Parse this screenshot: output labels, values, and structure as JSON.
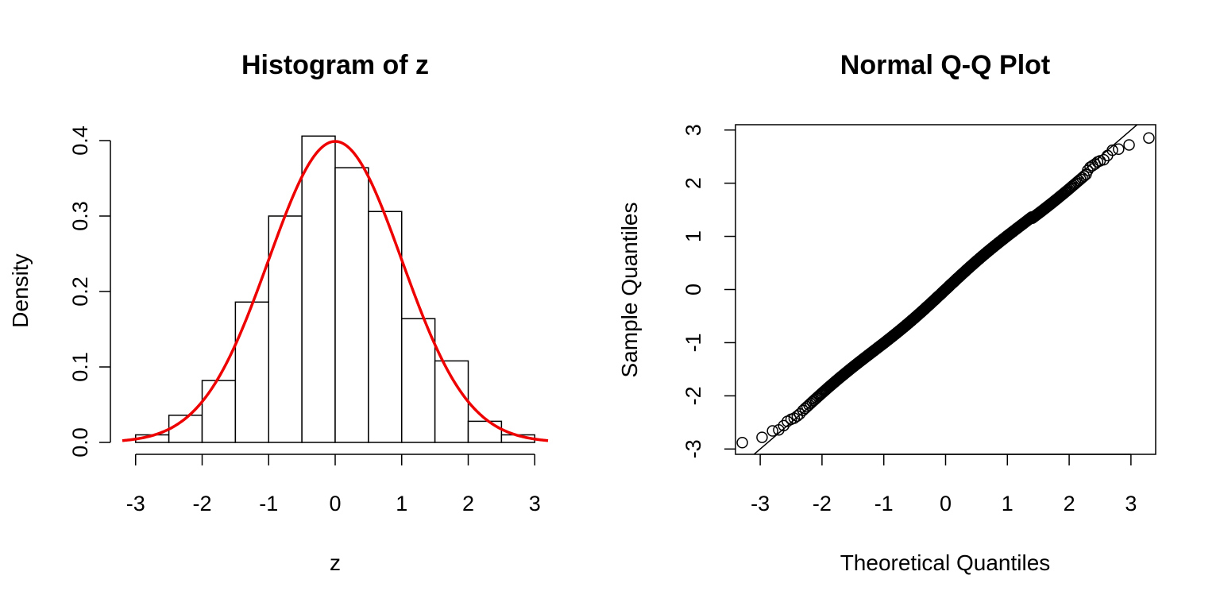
{
  "chart_data": [
    {
      "type": "bar",
      "title": "Histogram of z",
      "xlabel": "z",
      "ylabel": "Density",
      "xlim": [
        -3.2,
        3.2
      ],
      "ylim": [
        0,
        0.42
      ],
      "x_ticks": [
        -3,
        -2,
        -1,
        0,
        1,
        2,
        3
      ],
      "y_ticks": [
        0.0,
        0.1,
        0.2,
        0.3,
        0.4
      ],
      "y_tick_labels": [
        "0.0",
        "0.1",
        "0.2",
        "0.3",
        "0.4"
      ],
      "bin_edges": [
        -3.0,
        -2.5,
        -2.0,
        -1.5,
        -1.0,
        -0.5,
        0.0,
        0.5,
        1.0,
        1.5,
        2.0,
        2.5,
        3.0
      ],
      "values": [
        0.01,
        0.036,
        0.082,
        0.186,
        0.3,
        0.406,
        0.364,
        0.306,
        0.164,
        0.108,
        0.028,
        0.01
      ],
      "overlay": {
        "type": "line",
        "function": "standard normal density",
        "color": "#ee0000"
      },
      "bar_fill": "#ffffff",
      "bar_stroke": "#000000",
      "frame": "axes only",
      "grid": false
    },
    {
      "type": "scatter",
      "title": "Normal Q-Q Plot",
      "xlabel": "Theoretical Quantiles",
      "ylabel": "Sample Quantiles",
      "xlim": [
        -3.4,
        3.4
      ],
      "ylim": [
        -3.1,
        3.1
      ],
      "x_ticks": [
        -3,
        -2,
        -1,
        0,
        1,
        2,
        3
      ],
      "y_ticks": [
        -3,
        -2,
        -1,
        0,
        1,
        2,
        3
      ],
      "reference_line": {
        "slope": 1.0,
        "intercept": 0.0
      },
      "point_count": 1000,
      "tail_points": [
        {
          "x": -3.29,
          "y": -2.88
        },
        {
          "x": -2.97,
          "y": -2.78
        },
        {
          "x": -2.8,
          "y": -2.66
        },
        {
          "x": -2.7,
          "y": -2.64
        },
        {
          "x": -2.62,
          "y": -2.56
        },
        {
          "x": -2.56,
          "y": -2.48
        },
        {
          "x": -2.5,
          "y": -2.44
        },
        {
          "x": -2.45,
          "y": -2.42
        },
        {
          "x": -2.4,
          "y": -2.38
        },
        {
          "x": -2.36,
          "y": -2.34
        },
        {
          "x": 2.3,
          "y": 2.24
        },
        {
          "x": 2.34,
          "y": 2.3
        },
        {
          "x": 2.38,
          "y": 2.33
        },
        {
          "x": 2.42,
          "y": 2.36
        },
        {
          "x": 2.46,
          "y": 2.4
        },
        {
          "x": 2.5,
          "y": 2.42
        },
        {
          "x": 2.56,
          "y": 2.44
        },
        {
          "x": 2.62,
          "y": 2.52
        },
        {
          "x": 2.7,
          "y": 2.62
        },
        {
          "x": 2.8,
          "y": 2.64
        },
        {
          "x": 2.97,
          "y": 2.72
        },
        {
          "x": 3.29,
          "y": 2.85
        }
      ],
      "marker": "open circle",
      "frame": "box",
      "grid": false
    }
  ]
}
